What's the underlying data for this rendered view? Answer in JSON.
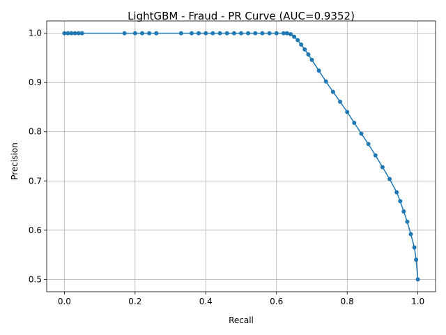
{
  "chart_data": {
    "type": "line",
    "title": "LightGBM - Fraud - PR Curve (AUC=0.9352)",
    "xlabel": "Recall",
    "ylabel": "Precision",
    "xlim": [
      -0.05,
      1.05
    ],
    "ylim": [
      0.475,
      1.025
    ],
    "x_ticks": [
      0.0,
      0.2,
      0.4,
      0.6,
      0.8,
      1.0
    ],
    "x_tick_labels": [
      "0.0",
      "0.2",
      "0.4",
      "0.6",
      "0.8",
      "1.0"
    ],
    "y_ticks": [
      0.5,
      0.6,
      0.7,
      0.8,
      0.9,
      1.0
    ],
    "y_tick_labels": [
      "0.5",
      "0.6",
      "0.7",
      "0.8",
      "0.9",
      "1.0"
    ],
    "grid": true,
    "marker": "circle",
    "color": "#1f77b4",
    "series": [
      {
        "x": [
          0.0,
          0.01,
          0.02,
          0.03,
          0.04,
          0.05,
          0.17,
          0.2,
          0.22,
          0.24,
          0.26,
          0.33,
          0.36,
          0.38,
          0.4,
          0.42,
          0.44,
          0.46,
          0.48,
          0.5,
          0.52,
          0.54,
          0.56,
          0.58,
          0.6,
          0.62,
          0.63,
          0.64,
          0.65,
          0.66,
          0.67,
          0.68,
          0.69,
          0.7,
          0.72,
          0.74,
          0.76,
          0.78,
          0.8,
          0.82,
          0.84,
          0.86,
          0.88,
          0.9,
          0.92,
          0.94,
          0.95,
          0.96,
          0.97,
          0.98,
          0.99,
          0.995,
          1.0
        ],
        "y": [
          1.0,
          1.0,
          1.0,
          1.0,
          1.0,
          1.0,
          1.0,
          1.0,
          1.0,
          1.0,
          1.0,
          1.0,
          1.0,
          1.0,
          1.0,
          1.0,
          1.0,
          1.0,
          1.0,
          1.0,
          1.0,
          1.0,
          1.0,
          1.0,
          1.0,
          1.0,
          1.0,
          0.998,
          0.993,
          0.986,
          0.977,
          0.967,
          0.957,
          0.946,
          0.924,
          0.902,
          0.881,
          0.861,
          0.84,
          0.818,
          0.796,
          0.775,
          0.752,
          0.728,
          0.704,
          0.677,
          0.659,
          0.638,
          0.617,
          0.592,
          0.565,
          0.54,
          0.5
        ]
      }
    ]
  }
}
